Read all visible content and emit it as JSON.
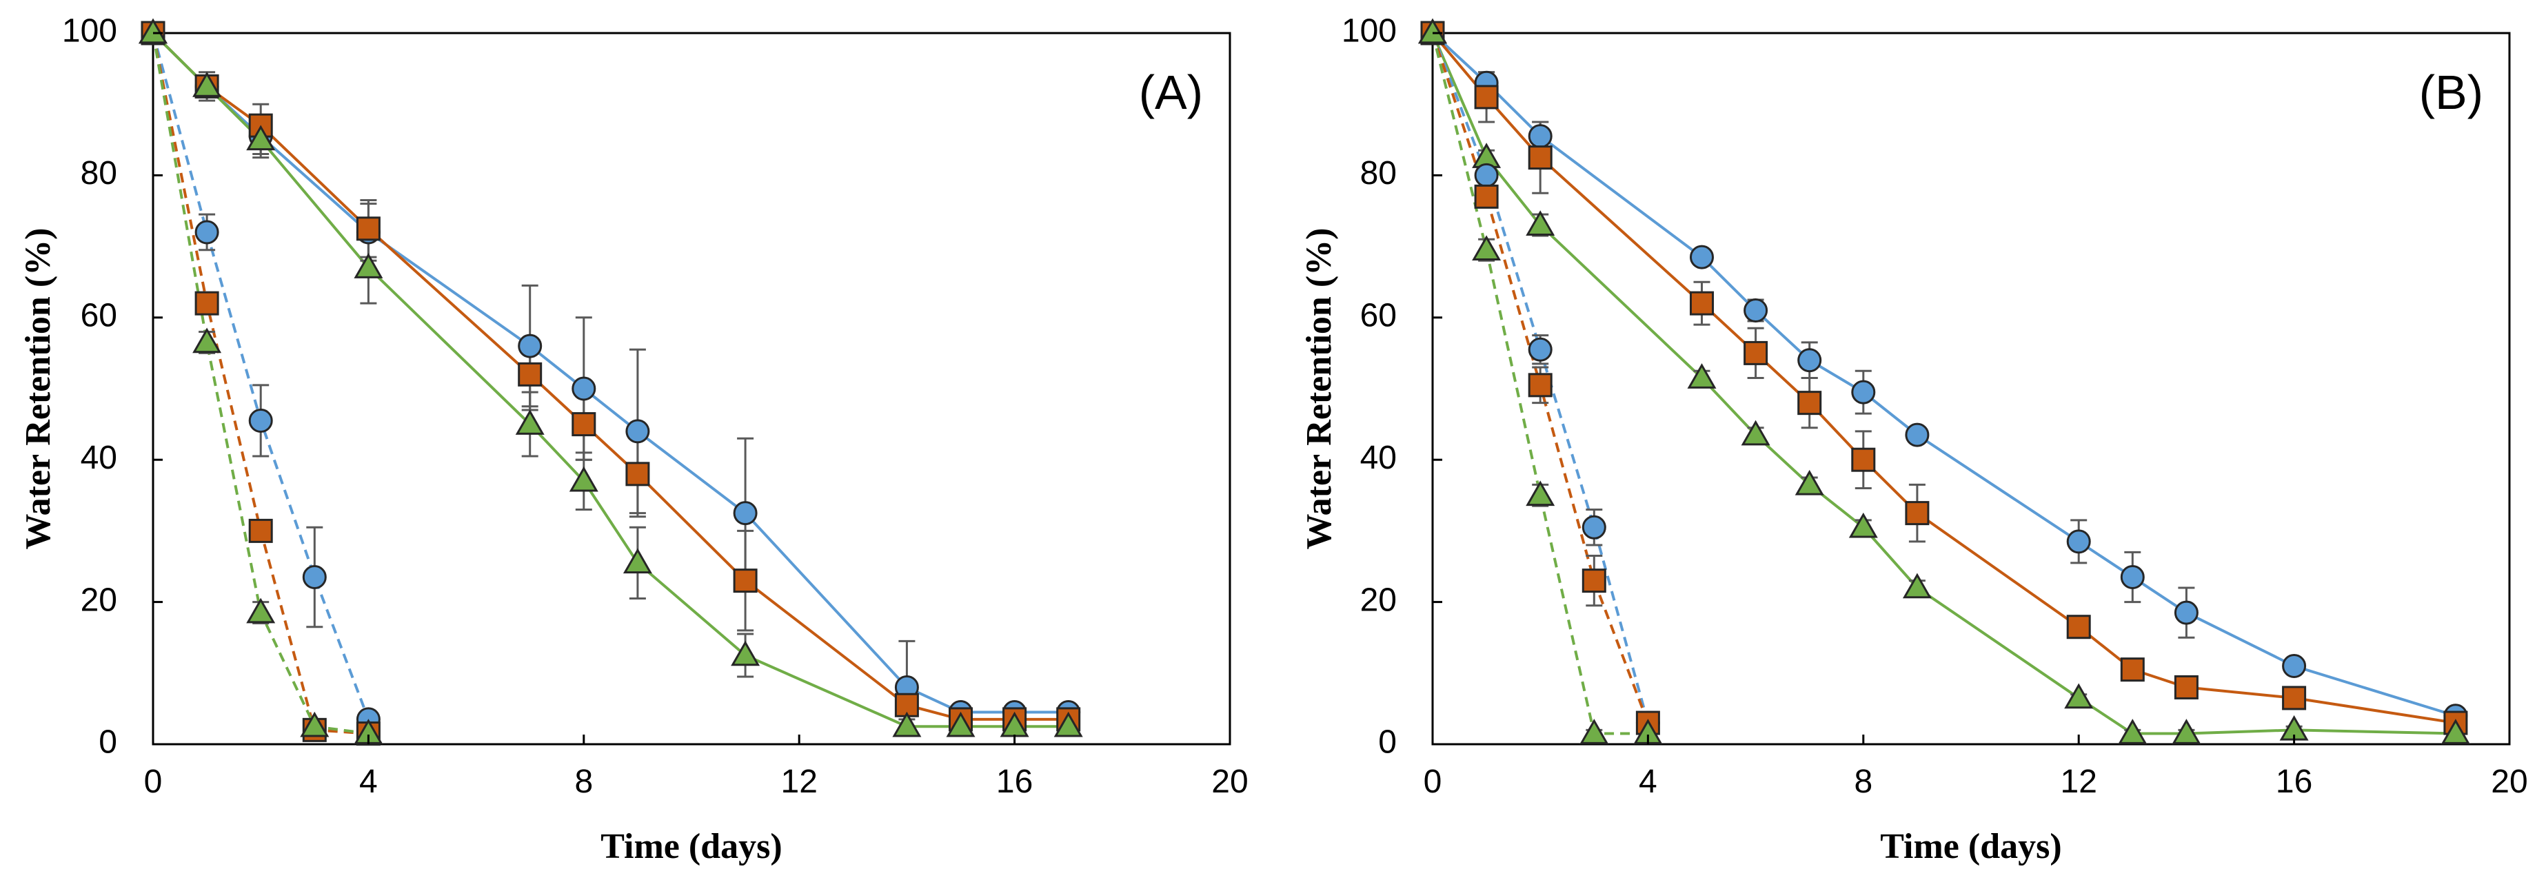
{
  "chart_data": [
    {
      "type": "line",
      "panel_label": "(A)",
      "xlabel": "Time (days)",
      "ylabel": "Water Retention (%)",
      "xlim": [
        0,
        20
      ],
      "ylim": [
        0,
        100
      ],
      "xticks": [
        "0",
        "4",
        "8",
        "12",
        "16",
        "20"
      ],
      "yticks": [
        "0",
        "20",
        "40",
        "60",
        "80",
        "100"
      ],
      "grid": false,
      "series": [
        {
          "name": "circle-solid",
          "marker": "circle",
          "color": "#5b9bd5",
          "dashed": false,
          "x": [
            0,
            1,
            2,
            4,
            7,
            8,
            9,
            11,
            14,
            15,
            16,
            17
          ],
          "y": [
            100,
            92.5,
            85.5,
            72,
            56,
            50,
            44,
            32.5,
            8,
            4.5,
            4.5,
            4.5
          ],
          "err": [
            0,
            1.5,
            3,
            4,
            8.5,
            10,
            11.5,
            10.5,
            6.5,
            1,
            1,
            1
          ]
        },
        {
          "name": "square-solid",
          "marker": "square",
          "color": "#c55a11",
          "dashed": false,
          "x": [
            0,
            1,
            2,
            4,
            7,
            8,
            9,
            11,
            14,
            15,
            16,
            17
          ],
          "y": [
            100,
            92.5,
            87,
            72.5,
            52,
            45,
            38,
            23,
            5.5,
            3.5,
            3.5,
            3.5
          ],
          "err": [
            0,
            2,
            3,
            4,
            5,
            5,
            6,
            7,
            1.5,
            1,
            1,
            1
          ]
        },
        {
          "name": "triangle-solid",
          "marker": "triangle",
          "color": "#70ad47",
          "dashed": false,
          "x": [
            0,
            1,
            2,
            4,
            7,
            8,
            9,
            11,
            14,
            15,
            16,
            17
          ],
          "y": [
            100,
            92.5,
            85,
            67,
            45,
            37,
            25.5,
            12.5,
            2.5,
            2.5,
            2.5,
            2.5
          ],
          "err": [
            0,
            1.5,
            2,
            5,
            4.5,
            4,
            5,
            3,
            1,
            1,
            1,
            1
          ]
        },
        {
          "name": "circle-dashed",
          "marker": "circle",
          "color": "#5b9bd5",
          "dashed": true,
          "x": [
            0,
            1,
            2,
            3,
            4
          ],
          "y": [
            100,
            72,
            45.5,
            23.5,
            3.5
          ],
          "err": [
            0,
            2.5,
            5,
            7,
            1
          ]
        },
        {
          "name": "square-dashed",
          "marker": "square",
          "color": "#c55a11",
          "dashed": true,
          "x": [
            0,
            1,
            2,
            3,
            4
          ],
          "y": [
            100,
            62,
            30,
            2,
            1.5
          ],
          "err": [
            0,
            1.5,
            1.5,
            0.5,
            0.5
          ]
        },
        {
          "name": "triangle-dashed",
          "marker": "triangle",
          "color": "#70ad47",
          "dashed": true,
          "x": [
            0,
            1,
            2,
            3,
            4
          ],
          "y": [
            100,
            56.5,
            18.5,
            2.5,
            1.5
          ],
          "err": [
            0,
            1.5,
            1.5,
            0.5,
            0.5
          ]
        }
      ]
    },
    {
      "type": "line",
      "panel_label": "(B)",
      "xlabel": "Time (days)",
      "ylabel": "Water Retention (%)",
      "xlim": [
        0,
        20
      ],
      "ylim": [
        0,
        100
      ],
      "xticks": [
        "0",
        "4",
        "8",
        "12",
        "16",
        "20"
      ],
      "yticks": [
        "0",
        "20",
        "40",
        "60",
        "80",
        "100"
      ],
      "grid": false,
      "series": [
        {
          "name": "circle-solid",
          "marker": "circle",
          "color": "#5b9bd5",
          "dashed": false,
          "x": [
            0,
            1,
            2,
            5,
            6,
            7,
            8,
            9,
            12,
            13,
            14,
            16,
            19
          ],
          "y": [
            100,
            93,
            85.5,
            68.5,
            61,
            54,
            49.5,
            43.5,
            28.5,
            23.5,
            18.5,
            11,
            4
          ],
          "err": [
            0,
            1.5,
            2,
            1,
            1.5,
            2.5,
            3,
            1,
            3,
            3.5,
            3.5,
            1,
            0.5
          ]
        },
        {
          "name": "square-solid",
          "marker": "square",
          "color": "#c55a11",
          "dashed": false,
          "x": [
            0,
            1,
            2,
            5,
            6,
            7,
            8,
            9,
            12,
            13,
            14,
            16,
            19
          ],
          "y": [
            100,
            91,
            82.5,
            62,
            55,
            48,
            40,
            32.5,
            16.5,
            10.5,
            8,
            6.5,
            3
          ],
          "err": [
            0,
            3.5,
            5,
            3,
            3.5,
            3.5,
            4,
            4,
            1,
            1,
            1,
            1,
            0.5
          ]
        },
        {
          "name": "triangle-solid",
          "marker": "triangle",
          "color": "#70ad47",
          "dashed": false,
          "x": [
            0,
            1,
            2,
            5,
            6,
            7,
            8,
            9,
            12,
            13,
            14,
            16,
            19
          ],
          "y": [
            100,
            82.5,
            73,
            51.5,
            43.5,
            36.5,
            30.5,
            22,
            6.5,
            1.5,
            1.5,
            2,
            1.5
          ],
          "err": [
            0,
            1,
            1.5,
            1,
            1,
            1,
            1,
            1,
            0.5,
            0.5,
            0.5,
            0.5,
            0.5
          ]
        },
        {
          "name": "circle-dashed",
          "marker": "circle",
          "color": "#5b9bd5",
          "dashed": true,
          "x": [
            0,
            1,
            2,
            3,
            4
          ],
          "y": [
            100,
            80,
            55.5,
            30.5,
            3
          ],
          "err": [
            0,
            1.5,
            2,
            2.5,
            0.5
          ]
        },
        {
          "name": "square-dashed",
          "marker": "square",
          "color": "#c55a11",
          "dashed": true,
          "x": [
            0,
            1,
            2,
            3,
            4
          ],
          "y": [
            100,
            77,
            50.5,
            23,
            3
          ],
          "err": [
            0,
            1.5,
            2.5,
            3.5,
            0.5
          ]
        },
        {
          "name": "triangle-dashed",
          "marker": "triangle",
          "color": "#70ad47",
          "dashed": true,
          "x": [
            0,
            1,
            2,
            3,
            4
          ],
          "y": [
            100,
            69.5,
            35,
            1.5,
            1.5
          ],
          "err": [
            0,
            1.5,
            1.5,
            0.5,
            0.5
          ]
        }
      ]
    }
  ]
}
